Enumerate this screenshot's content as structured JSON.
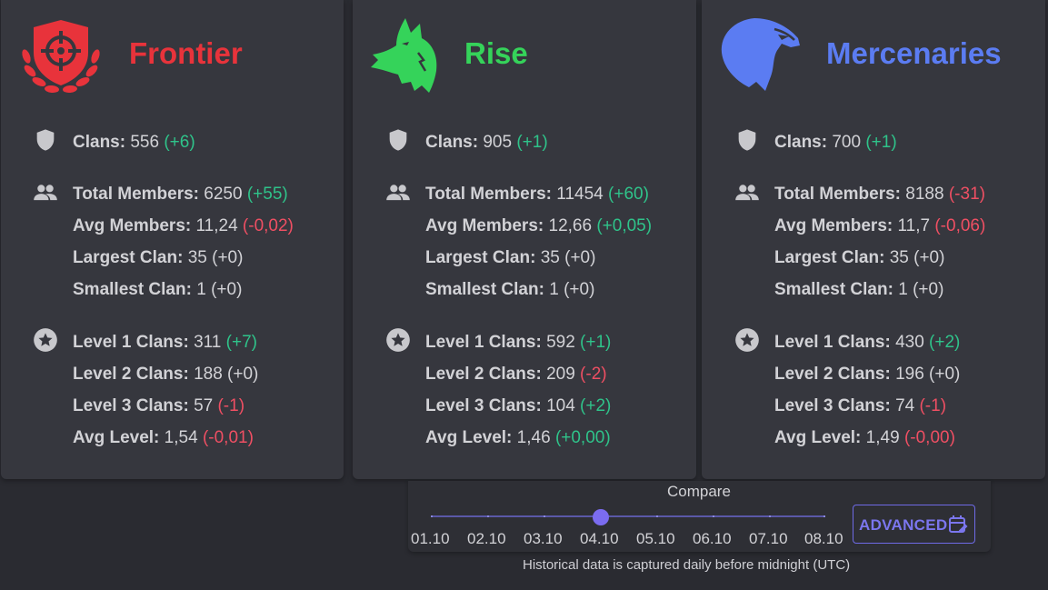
{
  "colors": {
    "frontier": "#e8333b",
    "rise": "#35d35a",
    "mercenaries": "#5b7cf2",
    "positive": "#2fc38a",
    "negative": "#ef4f63"
  },
  "factions": [
    {
      "name": "Frontier",
      "logo": "frontier-crosshair-shield-logo",
      "clans": {
        "label": "Clans:",
        "value": "556",
        "delta": "(+6)"
      },
      "total_members": {
        "label": "Total Members:",
        "value": "6250",
        "delta": "(+55)"
      },
      "avg_members": {
        "label": "Avg Members:",
        "value": "11,24",
        "delta": "(-0,02)"
      },
      "largest_clan": {
        "label": "Largest Clan:",
        "value": "35",
        "delta": "(+0)"
      },
      "smallest_clan": {
        "label": "Smallest Clan:",
        "value": "1",
        "delta": "(+0)"
      },
      "level1": {
        "label": "Level 1 Clans:",
        "value": "311",
        "delta": "(+7)"
      },
      "level2": {
        "label": "Level 2 Clans:",
        "value": "188",
        "delta": "(+0)"
      },
      "level3": {
        "label": "Level 3 Clans:",
        "value": "57",
        "delta": "(-1)"
      },
      "avg_level": {
        "label": "Avg Level:",
        "value": "1,54",
        "delta": "(-0,01)"
      }
    },
    {
      "name": "Rise",
      "logo": "rise-wolf-logo",
      "clans": {
        "label": "Clans:",
        "value": "905",
        "delta": "(+1)"
      },
      "total_members": {
        "label": "Total Members:",
        "value": "11454",
        "delta": "(+60)"
      },
      "avg_members": {
        "label": "Avg Members:",
        "value": "12,66",
        "delta": "(+0,05)"
      },
      "largest_clan": {
        "label": "Largest Clan:",
        "value": "35",
        "delta": "(+0)"
      },
      "smallest_clan": {
        "label": "Smallest Clan:",
        "value": "1",
        "delta": "(+0)"
      },
      "level1": {
        "label": "Level 1 Clans:",
        "value": "592",
        "delta": "(+1)"
      },
      "level2": {
        "label": "Level 2 Clans:",
        "value": "209",
        "delta": "(-2)"
      },
      "level3": {
        "label": "Level 3 Clans:",
        "value": "104",
        "delta": "(+2)"
      },
      "avg_level": {
        "label": "Avg Level:",
        "value": "1,46",
        "delta": "(+0,00)"
      }
    },
    {
      "name": "Mercenaries",
      "logo": "mercenaries-eagle-logo",
      "clans": {
        "label": "Clans:",
        "value": "700",
        "delta": "(+1)"
      },
      "total_members": {
        "label": "Total Members:",
        "value": "8188",
        "delta": "(-31)"
      },
      "avg_members": {
        "label": "Avg Members:",
        "value": "11,7",
        "delta": "(-0,06)"
      },
      "largest_clan": {
        "label": "Largest Clan:",
        "value": "35",
        "delta": "(+0)"
      },
      "smallest_clan": {
        "label": "Smallest Clan:",
        "value": "1",
        "delta": "(+0)"
      },
      "level1": {
        "label": "Level 1 Clans:",
        "value": "430",
        "delta": "(+2)"
      },
      "level2": {
        "label": "Level 2 Clans:",
        "value": "196",
        "delta": "(+0)"
      },
      "level3": {
        "label": "Level 3 Clans:",
        "value": "74",
        "delta": "(-1)"
      },
      "avg_level": {
        "label": "Avg Level:",
        "value": "1,49",
        "delta": "(-0,00)"
      }
    }
  ],
  "compare": {
    "label": "Compare",
    "dates": [
      "01.10",
      "02.10",
      "03.10",
      "04.10",
      "05.10",
      "06.10",
      "07.10",
      "08.10"
    ],
    "selected": "04.10",
    "advanced_label": "ADVANCED",
    "footnote": "Historical data is captured daily before midnight (UTC)"
  },
  "icons": {
    "clans": "shield-icon",
    "members": "people-icon",
    "levels": "star-circle-icon",
    "advanced": "calendar-edit-icon"
  }
}
